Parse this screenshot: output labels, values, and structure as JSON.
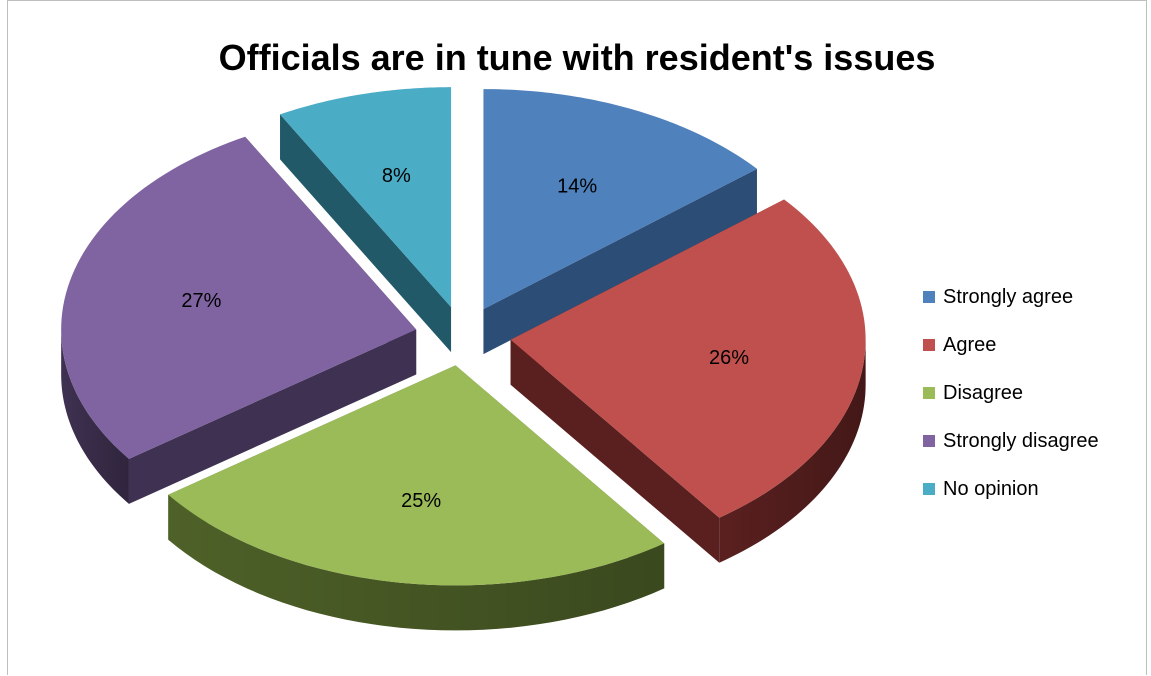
{
  "chart_data": {
    "type": "pie",
    "title": "Officials are in tune with resident's issues",
    "categories": [
      "Strongly agree",
      "Agree",
      "Disagree",
      "Strongly disagree",
      "No opinion"
    ],
    "values": [
      14,
      26,
      25,
      27,
      8
    ],
    "labels": [
      "14%",
      "26%",
      "25%",
      "27%",
      "8%"
    ],
    "colors": [
      "#4F81BD",
      "#C0504D",
      "#9BBB59",
      "#8064A2",
      "#4BACC6"
    ],
    "side_colors": [
      "#2C4D75",
      "#5A201F",
      "#4E6128",
      "#3F3151",
      "#215968"
    ],
    "style": "3d-exploded",
    "legend": "right"
  }
}
